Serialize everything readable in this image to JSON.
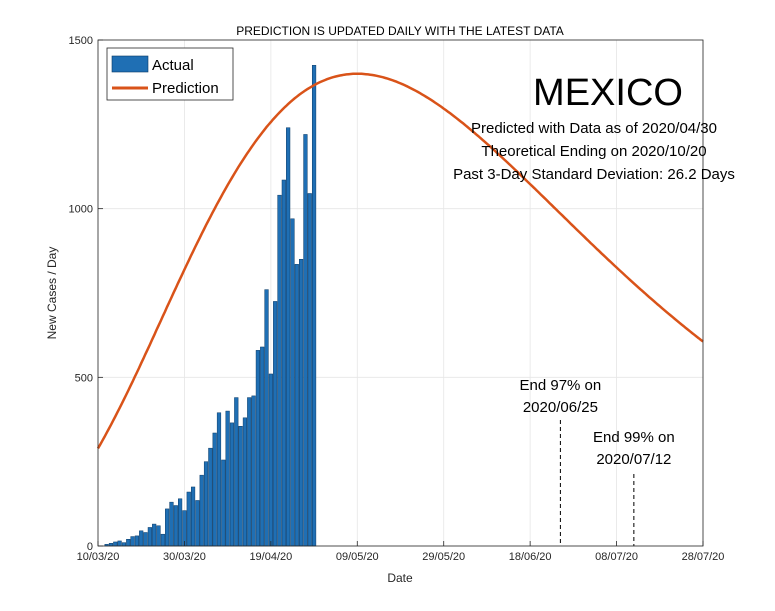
{
  "chart_data": {
    "type": "bar",
    "title": "PREDICTION IS UPDATED DAILY WITH THE LATEST DATA",
    "xlabel": "Date",
    "ylabel": "New Cases / Day",
    "ylim": [
      0,
      1500
    ],
    "xlim": [
      "2020-03-10",
      "2020-07-28"
    ],
    "y_ticks": [
      0,
      500,
      1000,
      1500
    ],
    "x_ticks": [
      {
        "date": "2020-03-10",
        "label": "10/03/20"
      },
      {
        "date": "2020-03-30",
        "label": "30/03/20"
      },
      {
        "date": "2020-04-19",
        "label": "19/04/20"
      },
      {
        "date": "2020-05-09",
        "label": "09/05/20"
      },
      {
        "date": "2020-05-29",
        "label": "29/05/20"
      },
      {
        "date": "2020-06-18",
        "label": "18/06/20"
      },
      {
        "date": "2020-07-08",
        "label": "08/07/20"
      },
      {
        "date": "2020-07-28",
        "label": "28/07/20"
      }
    ],
    "grid": true,
    "legend_position": "top-left",
    "colors": {
      "actual": "#1f6fb4",
      "prediction": "#d95319"
    },
    "series": [
      {
        "name": "Actual",
        "type": "bar",
        "x": [
          "2020-03-12",
          "2020-03-13",
          "2020-03-14",
          "2020-03-15",
          "2020-03-16",
          "2020-03-17",
          "2020-03-18",
          "2020-03-19",
          "2020-03-20",
          "2020-03-21",
          "2020-03-22",
          "2020-03-23",
          "2020-03-24",
          "2020-03-25",
          "2020-03-26",
          "2020-03-27",
          "2020-03-28",
          "2020-03-29",
          "2020-03-30",
          "2020-03-31",
          "2020-04-01",
          "2020-04-02",
          "2020-04-03",
          "2020-04-04",
          "2020-04-05",
          "2020-04-06",
          "2020-04-07",
          "2020-04-08",
          "2020-04-09",
          "2020-04-10",
          "2020-04-11",
          "2020-04-12",
          "2020-04-13",
          "2020-04-14",
          "2020-04-15",
          "2020-04-16",
          "2020-04-17",
          "2020-04-18",
          "2020-04-19",
          "2020-04-20",
          "2020-04-21",
          "2020-04-22",
          "2020-04-23",
          "2020-04-24",
          "2020-04-25",
          "2020-04-26",
          "2020-04-27",
          "2020-04-28",
          "2020-04-29",
          "2020-04-30"
        ],
        "values": [
          5,
          8,
          12,
          15,
          10,
          20,
          28,
          30,
          45,
          40,
          55,
          65,
          60,
          35,
          110,
          130,
          120,
          140,
          105,
          160,
          175,
          135,
          210,
          250,
          290,
          335,
          395,
          255,
          400,
          365,
          440,
          355,
          380,
          440,
          445,
          580,
          590,
          760,
          510,
          725,
          1040,
          1085,
          1240,
          970,
          835,
          850,
          1220,
          1045,
          1425,
          0
        ]
      },
      {
        "name": "Prediction",
        "type": "line",
        "peak": {
          "date": "2020-05-09",
          "value": 1400
        }
      }
    ],
    "annotations": [
      {
        "date": "2020-06-25",
        "line1": "End 97% on",
        "line2": "2020/06/25"
      },
      {
        "date": "2020-07-12",
        "line1": "End 99% on",
        "line2": "2020/07/12"
      }
    ]
  },
  "info": {
    "country": "MEXICO",
    "line1": "Predicted with Data as of 2020/04/30",
    "line2": "Theoretical Ending on 2020/10/20",
    "line3": "Past 3-Day Standard Deviation: 26.2 Days"
  }
}
